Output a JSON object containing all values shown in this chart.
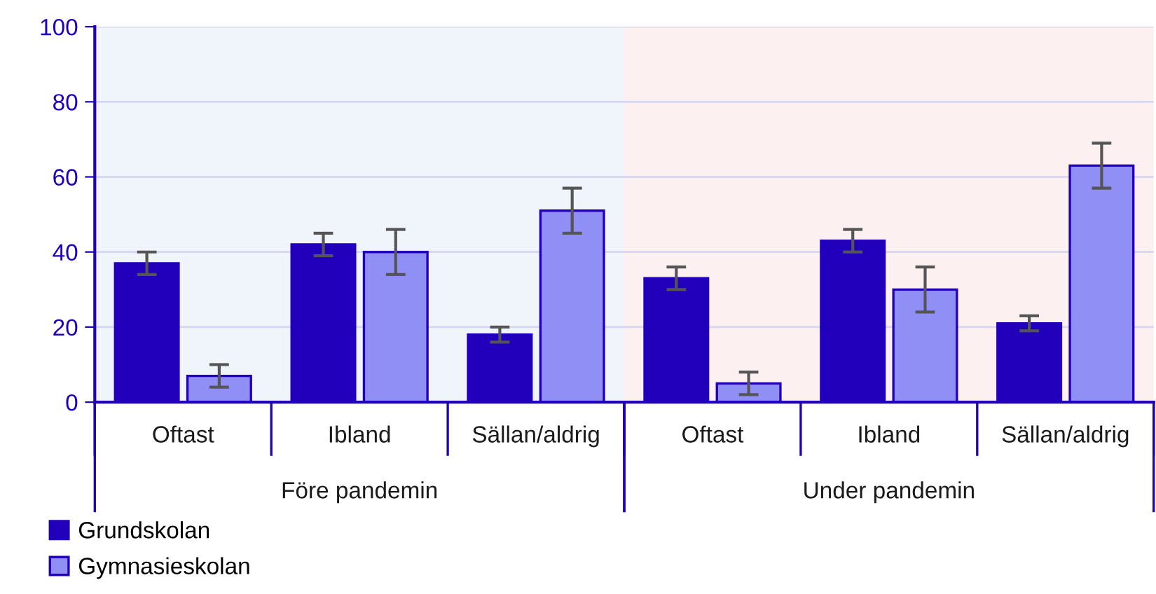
{
  "chart_data": {
    "type": "bar",
    "categories": [
      "Oftast",
      "Ibland",
      "Sällan/aldrig",
      "Oftast",
      "Ibland",
      "Sällan/aldrig"
    ],
    "series": [
      {
        "name": "Grundskolan",
        "color": "#2200bb",
        "values": [
          37,
          42,
          18,
          33,
          43,
          21
        ],
        "errors": [
          3,
          3,
          2,
          3,
          3,
          2
        ]
      },
      {
        "name": "Gymnasieskolan",
        "color": "#8f8ff5",
        "values": [
          7,
          40,
          51,
          5,
          30,
          63
        ],
        "errors": [
          3,
          6,
          6,
          3,
          6,
          6
        ]
      }
    ],
    "annotations": [
      "Före pandemin",
      "Under pandemin"
    ],
    "ylim": [
      0,
      100
    ],
    "yticks": [
      0,
      20,
      40,
      60,
      80,
      100
    ],
    "grid": "y",
    "legend": "bottom left"
  }
}
